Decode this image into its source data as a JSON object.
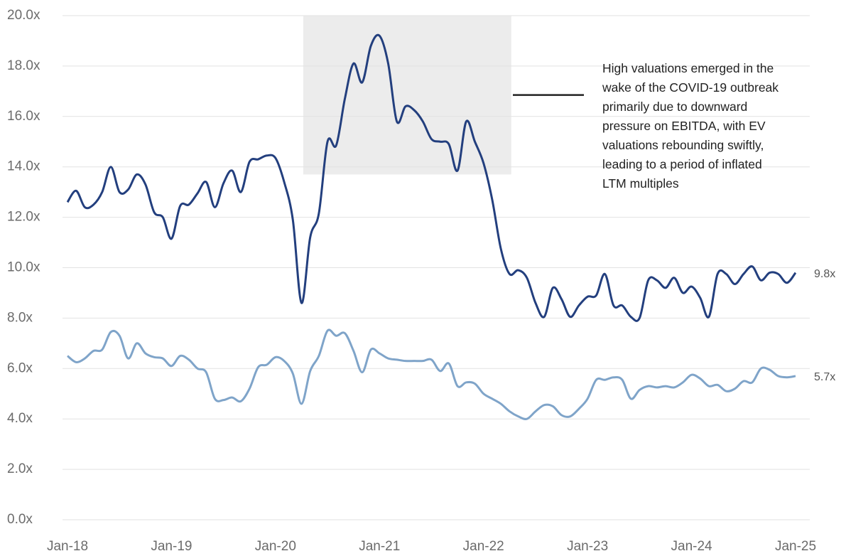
{
  "chart_data": {
    "type": "line",
    "categories": [
      "Jan-18",
      null,
      null,
      null,
      null,
      null,
      null,
      null,
      null,
      null,
      null,
      null,
      "Jan-19",
      null,
      null,
      null,
      null,
      null,
      null,
      null,
      null,
      null,
      null,
      null,
      "Jan-20",
      null,
      null,
      null,
      null,
      null,
      null,
      null,
      null,
      null,
      null,
      null,
      "Jan-21",
      null,
      null,
      null,
      null,
      null,
      null,
      null,
      null,
      null,
      null,
      null,
      "Jan-22",
      null,
      null,
      null,
      null,
      null,
      null,
      null,
      null,
      null,
      null,
      null,
      "Jan-23",
      null,
      null,
      null,
      null,
      null,
      null,
      null,
      null,
      null,
      null,
      null,
      "Jan-24",
      null,
      null,
      null,
      null,
      null,
      null,
      null,
      null,
      null,
      null,
      null,
      "Jan-25"
    ],
    "series": [
      {
        "color": "#233f7e",
        "end_label": "9.8x",
        "values": [
          12.6,
          13.05,
          12.4,
          12.5,
          13.0,
          14.0,
          13.0,
          13.1,
          13.7,
          13.3,
          12.2,
          12.0,
          11.15,
          12.45,
          12.5,
          12.95,
          13.4,
          12.4,
          13.35,
          13.85,
          13.0,
          14.2,
          14.3,
          14.45,
          14.35,
          13.4,
          11.9,
          8.6,
          11.2,
          12.15,
          15.0,
          14.85,
          16.7,
          18.1,
          17.35,
          18.8,
          19.2,
          18.1,
          15.8,
          16.4,
          16.25,
          15.8,
          15.1,
          15.0,
          14.9,
          13.85,
          15.8,
          15.0,
          14.15,
          12.7,
          10.75,
          9.75,
          9.9,
          9.6,
          8.6,
          8.05,
          9.2,
          8.75,
          8.05,
          8.5,
          8.85,
          8.9,
          9.75,
          8.5,
          8.5,
          8.05,
          8.0,
          9.5,
          9.5,
          9.2,
          9.6,
          9.0,
          9.25,
          8.8,
          8.05,
          9.75,
          9.75,
          9.35,
          9.75,
          10.05,
          9.5,
          9.8,
          9.75,
          9.4,
          9.8
        ]
      },
      {
        "color": "#7fa4c9",
        "end_label": "5.7x",
        "values": [
          6.5,
          6.25,
          6.4,
          6.7,
          6.75,
          7.45,
          7.3,
          6.4,
          7.0,
          6.6,
          6.45,
          6.4,
          6.1,
          6.5,
          6.35,
          6.0,
          5.85,
          4.8,
          4.75,
          4.85,
          4.7,
          5.2,
          6.05,
          6.15,
          6.45,
          6.3,
          5.8,
          4.6,
          5.9,
          6.5,
          7.5,
          7.3,
          7.4,
          6.7,
          5.85,
          6.75,
          6.6,
          6.4,
          6.35,
          6.3,
          6.3,
          6.3,
          6.35,
          5.9,
          6.2,
          5.3,
          5.45,
          5.4,
          5.0,
          4.8,
          4.6,
          4.3,
          4.1,
          4.0,
          4.3,
          4.55,
          4.5,
          4.15,
          4.1,
          4.4,
          4.8,
          5.55,
          5.55,
          5.65,
          5.55,
          4.8,
          5.15,
          5.3,
          5.25,
          5.3,
          5.25,
          5.45,
          5.75,
          5.6,
          5.3,
          5.35,
          5.1,
          5.2,
          5.5,
          5.45,
          6.0,
          5.95,
          5.7,
          5.65,
          5.7
        ]
      }
    ],
    "ylim": [
      0,
      20
    ],
    "yticks": [
      {
        "value": 0,
        "label": "0.0x"
      },
      {
        "value": 2,
        "label": "2.0x"
      },
      {
        "value": 4,
        "label": "4.0x"
      },
      {
        "value": 6,
        "label": "6.0x"
      },
      {
        "value": 8,
        "label": "8.0x"
      },
      {
        "value": 10,
        "label": "10.0x"
      },
      {
        "value": 12,
        "label": "12.0x"
      },
      {
        "value": 14,
        "label": "14.0x"
      },
      {
        "value": 16,
        "label": "16.0x"
      },
      {
        "value": 18,
        "label": "18.0x"
      },
      {
        "value": 20,
        "label": "20.0x"
      }
    ],
    "grid": true,
    "highlight": {
      "x_range": [
        27.2,
        51.2
      ],
      "y_range": [
        13.7,
        20
      ],
      "color": "#ececec"
    },
    "annotation": {
      "lines": [
        "High valuations emerged in the",
        "wake of the COVID-19 outbreak",
        "primarily due to downward",
        "pressure on EBITDA, with EV",
        "valuations rebounding swiftly,",
        "leading to a period of inflated",
        "LTM multiples"
      ],
      "y": 16.85
    }
  }
}
